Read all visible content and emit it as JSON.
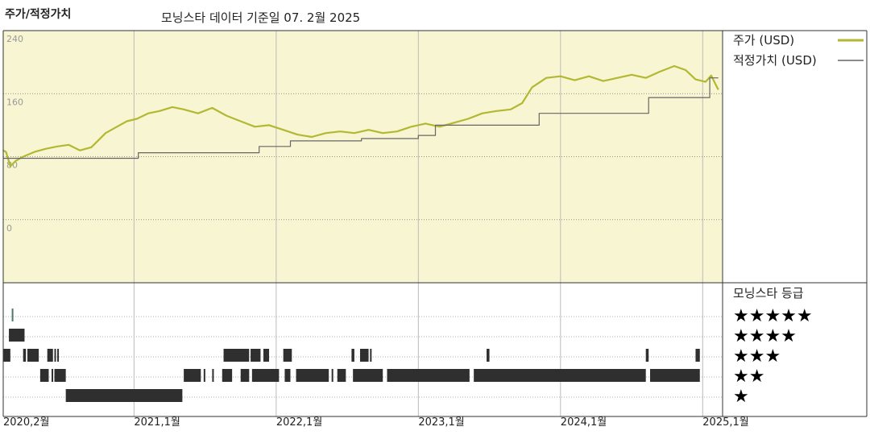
{
  "header": {
    "title": "주가/적정가치",
    "subtitle": "모닝스타 데이터 기준일 07. 2월 2025"
  },
  "colors": {
    "price": "#b3b833",
    "fair_value": "#666666",
    "plot_bg": "#f8f5d2",
    "rating_bar": "#2f2f2f",
    "rating_5star": "#4a7a68"
  },
  "legend": {
    "price_label": "주가 (USD)",
    "fair_value_label": "적정가치 (USD)",
    "rating_title": "모닝스타 등급"
  },
  "chart_data": {
    "type": "line",
    "y_ticks": [
      "240",
      "160",
      "80",
      "0"
    ],
    "ylim": [
      -80,
      240
    ],
    "x_labels": [
      "2020,2월",
      "2021,1월",
      "2022,1월",
      "2023,1월",
      "2024,1월",
      "2025,1월"
    ],
    "xlim": [
      2020.08,
      2025.14
    ],
    "series": [
      {
        "name": "주가 (USD)",
        "points": [
          [
            2020.08,
            88
          ],
          [
            2020.1,
            86
          ],
          [
            2020.13,
            68
          ],
          [
            2020.17,
            75
          ],
          [
            2020.22,
            80
          ],
          [
            2020.3,
            86
          ],
          [
            2020.38,
            90
          ],
          [
            2020.46,
            93
          ],
          [
            2020.54,
            95
          ],
          [
            2020.62,
            88
          ],
          [
            2020.7,
            92
          ],
          [
            2020.8,
            110
          ],
          [
            2020.88,
            118
          ],
          [
            2020.95,
            125
          ],
          [
            2021.02,
            128
          ],
          [
            2021.1,
            135
          ],
          [
            2021.18,
            138
          ],
          [
            2021.27,
            143
          ],
          [
            2021.35,
            140
          ],
          [
            2021.45,
            135
          ],
          [
            2021.55,
            142
          ],
          [
            2021.65,
            132
          ],
          [
            2021.75,
            125
          ],
          [
            2021.85,
            118
          ],
          [
            2021.95,
            120
          ],
          [
            2022.05,
            114
          ],
          [
            2022.15,
            108
          ],
          [
            2022.25,
            105
          ],
          [
            2022.35,
            110
          ],
          [
            2022.45,
            112
          ],
          [
            2022.55,
            110
          ],
          [
            2022.65,
            114
          ],
          [
            2022.75,
            110
          ],
          [
            2022.85,
            112
          ],
          [
            2022.95,
            118
          ],
          [
            2023.05,
            122
          ],
          [
            2023.15,
            118
          ],
          [
            2023.25,
            123
          ],
          [
            2023.35,
            128
          ],
          [
            2023.45,
            135
          ],
          [
            2023.55,
            138
          ],
          [
            2023.65,
            140
          ],
          [
            2023.73,
            148
          ],
          [
            2023.8,
            168
          ],
          [
            2023.9,
            180
          ],
          [
            2024.0,
            182
          ],
          [
            2024.1,
            177
          ],
          [
            2024.2,
            182
          ],
          [
            2024.3,
            176
          ],
          [
            2024.4,
            180
          ],
          [
            2024.5,
            184
          ],
          [
            2024.6,
            180
          ],
          [
            2024.7,
            188
          ],
          [
            2024.8,
            195
          ],
          [
            2024.88,
            190
          ],
          [
            2024.95,
            178
          ],
          [
            2025.02,
            175
          ],
          [
            2025.06,
            183
          ],
          [
            2025.09,
            172
          ],
          [
            2025.11,
            165
          ]
        ]
      },
      {
        "name": "적정가치 (USD)",
        "points": [
          [
            2020.08,
            78
          ],
          [
            2021.03,
            78
          ],
          [
            2021.03,
            85
          ],
          [
            2021.88,
            85
          ],
          [
            2021.88,
            93
          ],
          [
            2022.1,
            93
          ],
          [
            2022.1,
            100
          ],
          [
            2022.6,
            100
          ],
          [
            2022.6,
            103
          ],
          [
            2023.0,
            103
          ],
          [
            2023.0,
            107
          ],
          [
            2023.12,
            107
          ],
          [
            2023.12,
            120
          ],
          [
            2023.85,
            120
          ],
          [
            2023.85,
            135
          ],
          [
            2024.62,
            135
          ],
          [
            2024.62,
            155
          ],
          [
            2025.05,
            155
          ],
          [
            2025.05,
            180
          ],
          [
            2025.11,
            180
          ]
        ]
      }
    ],
    "rating_stars": [
      "★★★★★",
      "★★★★",
      "★★★",
      "★★",
      "★"
    ],
    "rating_periods": [
      {
        "stars": 5,
        "spans": [
          [
            2020.14,
            2020.15
          ]
        ]
      },
      {
        "stars": 4,
        "spans": [
          [
            2020.12,
            2020.23
          ]
        ]
      },
      {
        "stars": 3,
        "spans": [
          [
            2020.08,
            2020.13
          ],
          [
            2020.22,
            2020.24
          ],
          [
            2020.25,
            2020.33
          ],
          [
            2020.39,
            2020.43
          ],
          [
            2020.44,
            2020.45
          ],
          [
            2020.46,
            2020.47
          ],
          [
            2021.63,
            2021.81
          ],
          [
            2021.82,
            2021.89
          ],
          [
            2021.91,
            2021.95
          ],
          [
            2022.05,
            2022.11
          ],
          [
            2022.53,
            2022.55
          ],
          [
            2022.59,
            2022.65
          ],
          [
            2022.66,
            2022.67
          ],
          [
            2023.48,
            2023.5
          ],
          [
            2024.6,
            2024.62
          ],
          [
            2024.95,
            2024.98
          ]
        ]
      },
      {
        "stars": 2,
        "spans": [
          [
            2020.34,
            2020.4
          ],
          [
            2020.42,
            2020.43
          ],
          [
            2020.44,
            2020.52
          ],
          [
            2021.35,
            2021.47
          ],
          [
            2021.49,
            2021.5
          ],
          [
            2021.55,
            2021.56
          ],
          [
            2021.62,
            2021.69
          ],
          [
            2021.75,
            2021.81
          ],
          [
            2021.83,
            2022.02
          ],
          [
            2022.06,
            2022.1
          ],
          [
            2022.14,
            2022.37
          ],
          [
            2022.39,
            2022.4
          ],
          [
            2022.43,
            2022.49
          ],
          [
            2022.54,
            2022.75
          ],
          [
            2022.78,
            2023.36
          ],
          [
            2023.39,
            2024.6
          ],
          [
            2024.63,
            2024.98
          ]
        ]
      },
      {
        "stars": 1,
        "spans": [
          [
            2020.52,
            2021.34
          ]
        ]
      }
    ]
  }
}
